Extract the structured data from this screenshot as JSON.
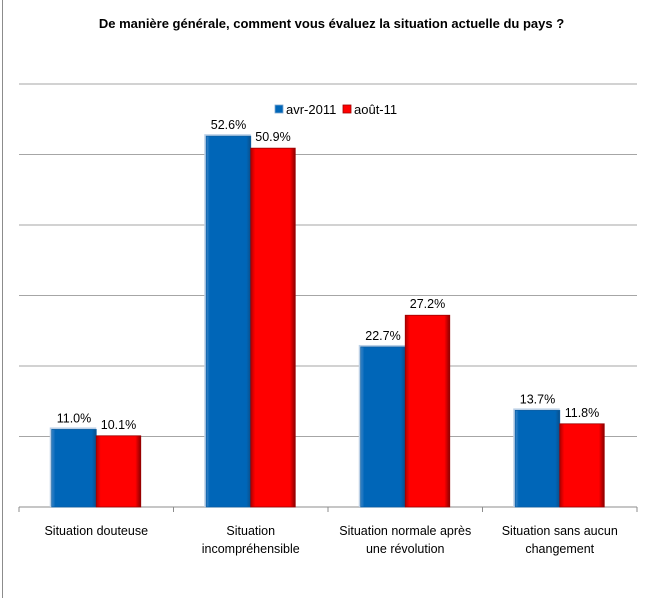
{
  "chart_data": {
    "type": "bar",
    "title": "De manière générale, comment vous évaluez la situation actuelle du pays ?",
    "xlabel": "",
    "ylabel": "",
    "ylim": [
      0,
      60
    ],
    "grid": true,
    "y_tick_step": 10,
    "legend_position": "top-center",
    "categories": [
      [
        "Situation douteuse"
      ],
      [
        "Situation",
        "incompréhensible"
      ],
      [
        "Situation normale après",
        "une révolution"
      ],
      [
        "Situation sans aucun",
        "changement"
      ]
    ],
    "series": [
      {
        "name": "avr-2011",
        "color": "#0066b8",
        "values": [
          11.0,
          52.6,
          22.7,
          13.7
        ],
        "labels": [
          "11.0%",
          "52.6%",
          "22.7%",
          "13.7%"
        ]
      },
      {
        "name": "août-11",
        "color": "#ff0000",
        "values": [
          10.1,
          50.9,
          27.2,
          11.8
        ],
        "labels": [
          "10.1%",
          "50.9%",
          "27.2%",
          "11.8%"
        ]
      }
    ]
  }
}
